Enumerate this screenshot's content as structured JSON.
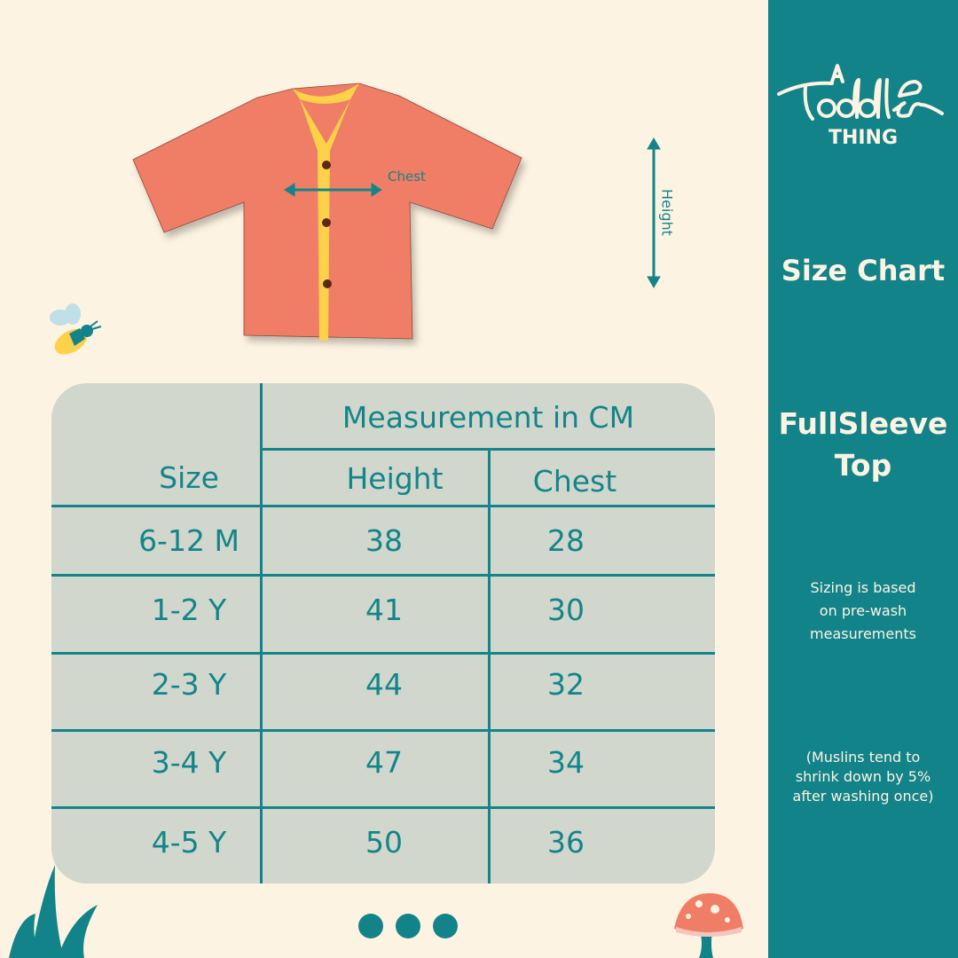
{
  "brand": {
    "logo_text": "A Toddler Thing"
  },
  "sidebar": {
    "title": "Size Chart",
    "product_line1": "FullSleeve",
    "product_line2": "Top",
    "note1": [
      "Sizing is based",
      "on pre-wash",
      "measurements"
    ],
    "note2": [
      "(Muslins tend to",
      "shrink down by 5%",
      "after washing once)"
    ]
  },
  "diagram": {
    "chest_label": "Chest",
    "height_label": "Height"
  },
  "table": {
    "group_header": "Measurement in CM",
    "headers": [
      "Size",
      "Height",
      "Chest"
    ],
    "rows": [
      [
        "6-12 M",
        "38",
        "28"
      ],
      [
        "1-2 Y",
        "41",
        "30"
      ],
      [
        "2-3 Y",
        "44",
        "32"
      ],
      [
        "3-4 Y",
        "47",
        "34"
      ],
      [
        "4-5 Y",
        "50",
        "36"
      ]
    ]
  },
  "pagination": {
    "dots": 3
  },
  "colors": {
    "teal": "#13838a",
    "background": "#fdf3e2",
    "shirt": "#f07d65",
    "trim": "#fdd14a",
    "table_bg": "#d1d7cd"
  }
}
